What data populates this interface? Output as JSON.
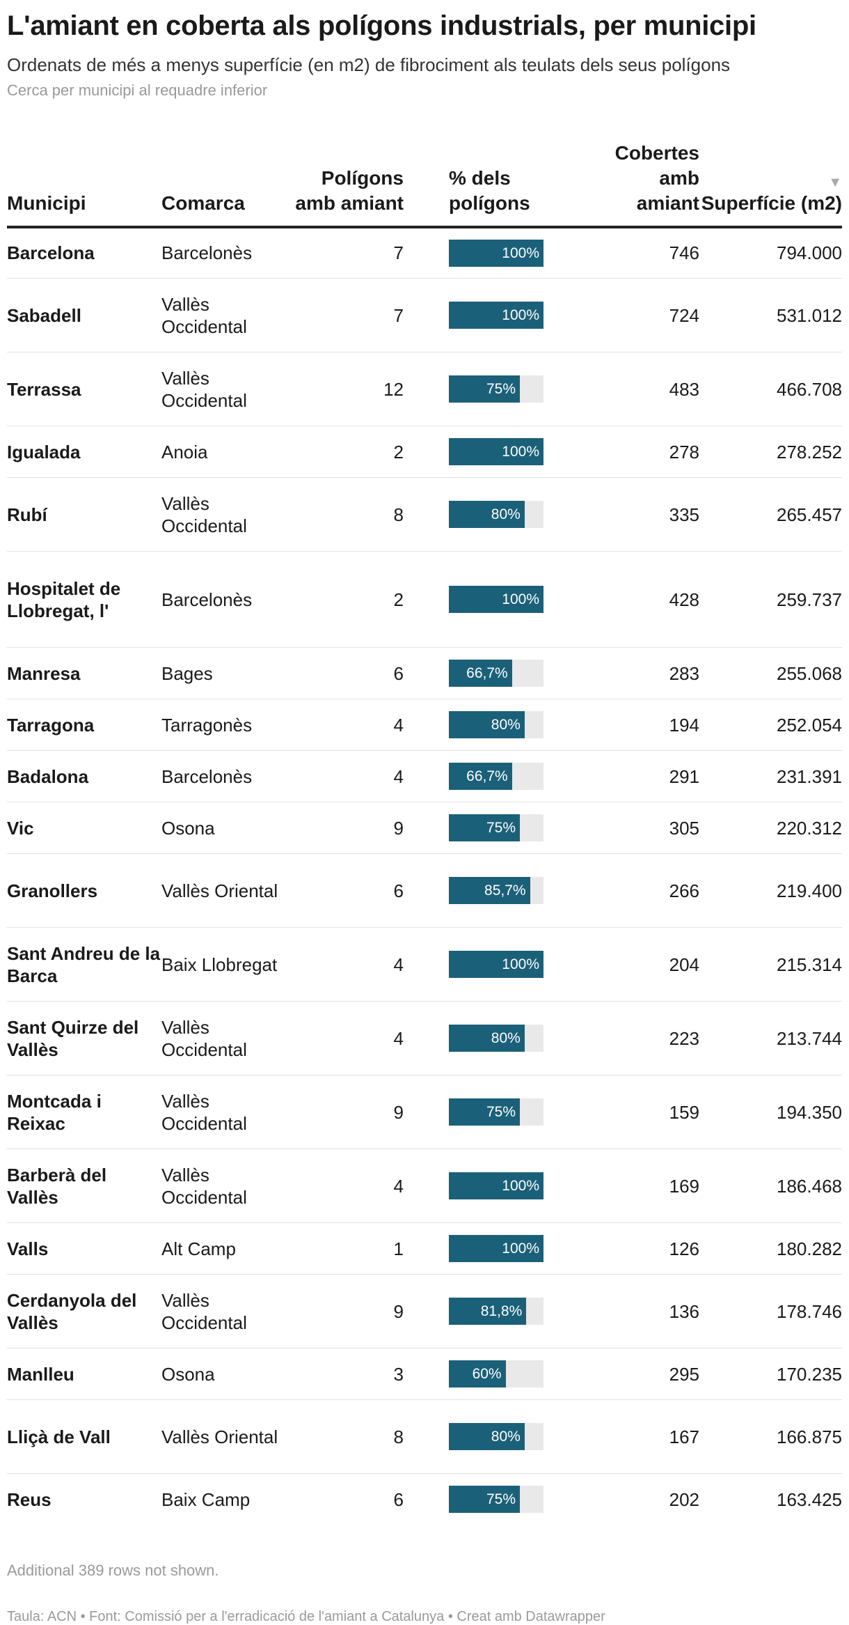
{
  "header": {
    "title": "L'amiant en coberta als polígons industrials, per municipi",
    "subtitle": "Ordenats de més a menys superfície (en m2) de fibrociment als teulats dels seus polígons",
    "hint": "Cerca per municipi al requadre inferior"
  },
  "columns": {
    "municipi": "Municipi",
    "comarca": "Comarca",
    "poligons": "Polígons amb amiant",
    "pct": "% dels polígons",
    "cobertes": "Cobertes amb amiant",
    "superficie": "Superfície (m2)",
    "sort_icon": "▼"
  },
  "colors": {
    "bar": "#1b6079",
    "bar_track": "#e9e9e9"
  },
  "chart_data": {
    "type": "table",
    "columns": [
      "Municipi",
      "Comarca",
      "Polígons amb amiant",
      "% dels polígons",
      "Cobertes amb amiant",
      "Superfície (m2)"
    ],
    "rows": [
      {
        "municipi": "Barcelona",
        "comarca": "Barcelonès",
        "poligons": "7",
        "pct": 100,
        "pct_label": "100%",
        "cobertes": "746",
        "superficie": "794.000"
      },
      {
        "municipi": "Sabadell",
        "comarca": "Vallès Occidental",
        "poligons": "7",
        "pct": 100,
        "pct_label": "100%",
        "cobertes": "724",
        "superficie": "531.012"
      },
      {
        "municipi": "Terrassa",
        "comarca": "Vallès Occidental",
        "poligons": "12",
        "pct": 75,
        "pct_label": "75%",
        "cobertes": "483",
        "superficie": "466.708"
      },
      {
        "municipi": "Igualada",
        "comarca": "Anoia",
        "poligons": "2",
        "pct": 100,
        "pct_label": "100%",
        "cobertes": "278",
        "superficie": "278.252"
      },
      {
        "municipi": "Rubí",
        "comarca": "Vallès Occidental",
        "poligons": "8",
        "pct": 80,
        "pct_label": "80%",
        "cobertes": "335",
        "superficie": "265.457"
      },
      {
        "municipi": "Hospitalet de Llobregat, l'",
        "comarca": "Barcelonès",
        "poligons": "2",
        "pct": 100,
        "pct_label": "100%",
        "cobertes": "428",
        "superficie": "259.737"
      },
      {
        "municipi": "Manresa",
        "comarca": "Bages",
        "poligons": "6",
        "pct": 66.7,
        "pct_label": "66,7%",
        "cobertes": "283",
        "superficie": "255.068"
      },
      {
        "municipi": "Tarragona",
        "comarca": "Tarragonès",
        "poligons": "4",
        "pct": 80,
        "pct_label": "80%",
        "cobertes": "194",
        "superficie": "252.054"
      },
      {
        "municipi": "Badalona",
        "comarca": "Barcelonès",
        "poligons": "4",
        "pct": 66.7,
        "pct_label": "66,7%",
        "cobertes": "291",
        "superficie": "231.391"
      },
      {
        "municipi": "Vic",
        "comarca": "Osona",
        "poligons": "9",
        "pct": 75,
        "pct_label": "75%",
        "cobertes": "305",
        "superficie": "220.312"
      },
      {
        "municipi": "Granollers",
        "comarca": "Vallès Oriental",
        "poligons": "6",
        "pct": 85.7,
        "pct_label": "85,7%",
        "cobertes": "266",
        "superficie": "219.400"
      },
      {
        "municipi": "Sant Andreu de la Barca",
        "comarca": "Baix Llobregat",
        "poligons": "4",
        "pct": 100,
        "pct_label": "100%",
        "cobertes": "204",
        "superficie": "215.314"
      },
      {
        "municipi": "Sant Quirze del Vallès",
        "comarca": "Vallès Occidental",
        "poligons": "4",
        "pct": 80,
        "pct_label": "80%",
        "cobertes": "223",
        "superficie": "213.744"
      },
      {
        "municipi": "Montcada i Reixac",
        "comarca": "Vallès Occidental",
        "poligons": "9",
        "pct": 75,
        "pct_label": "75%",
        "cobertes": "159",
        "superficie": "194.350"
      },
      {
        "municipi": "Barberà del Vallès",
        "comarca": "Vallès Occidental",
        "poligons": "4",
        "pct": 100,
        "pct_label": "100%",
        "cobertes": "169",
        "superficie": "186.468"
      },
      {
        "municipi": "Valls",
        "comarca": "Alt Camp",
        "poligons": "1",
        "pct": 100,
        "pct_label": "100%",
        "cobertes": "126",
        "superficie": "180.282"
      },
      {
        "municipi": "Cerdanyola del Vallès",
        "comarca": "Vallès Occidental",
        "poligons": "9",
        "pct": 81.8,
        "pct_label": "81,8%",
        "cobertes": "136",
        "superficie": "178.746"
      },
      {
        "municipi": "Manlleu",
        "comarca": "Osona",
        "poligons": "3",
        "pct": 60,
        "pct_label": "60%",
        "cobertes": "295",
        "superficie": "170.235"
      },
      {
        "municipi": "Lliçà de Vall",
        "comarca": "Vallès Oriental",
        "poligons": "8",
        "pct": 80,
        "pct_label": "80%",
        "cobertes": "167",
        "superficie": "166.875"
      },
      {
        "municipi": "Reus",
        "comarca": "Baix Camp",
        "poligons": "6",
        "pct": 75,
        "pct_label": "75%",
        "cobertes": "202",
        "superficie": "163.425"
      }
    ]
  },
  "note": "Additional 389 rows not shown.",
  "footer": "Taula: ACN • Font: Comissió per a l'erradicació de l'amiant a Catalunya  • Creat amb Datawrapper"
}
